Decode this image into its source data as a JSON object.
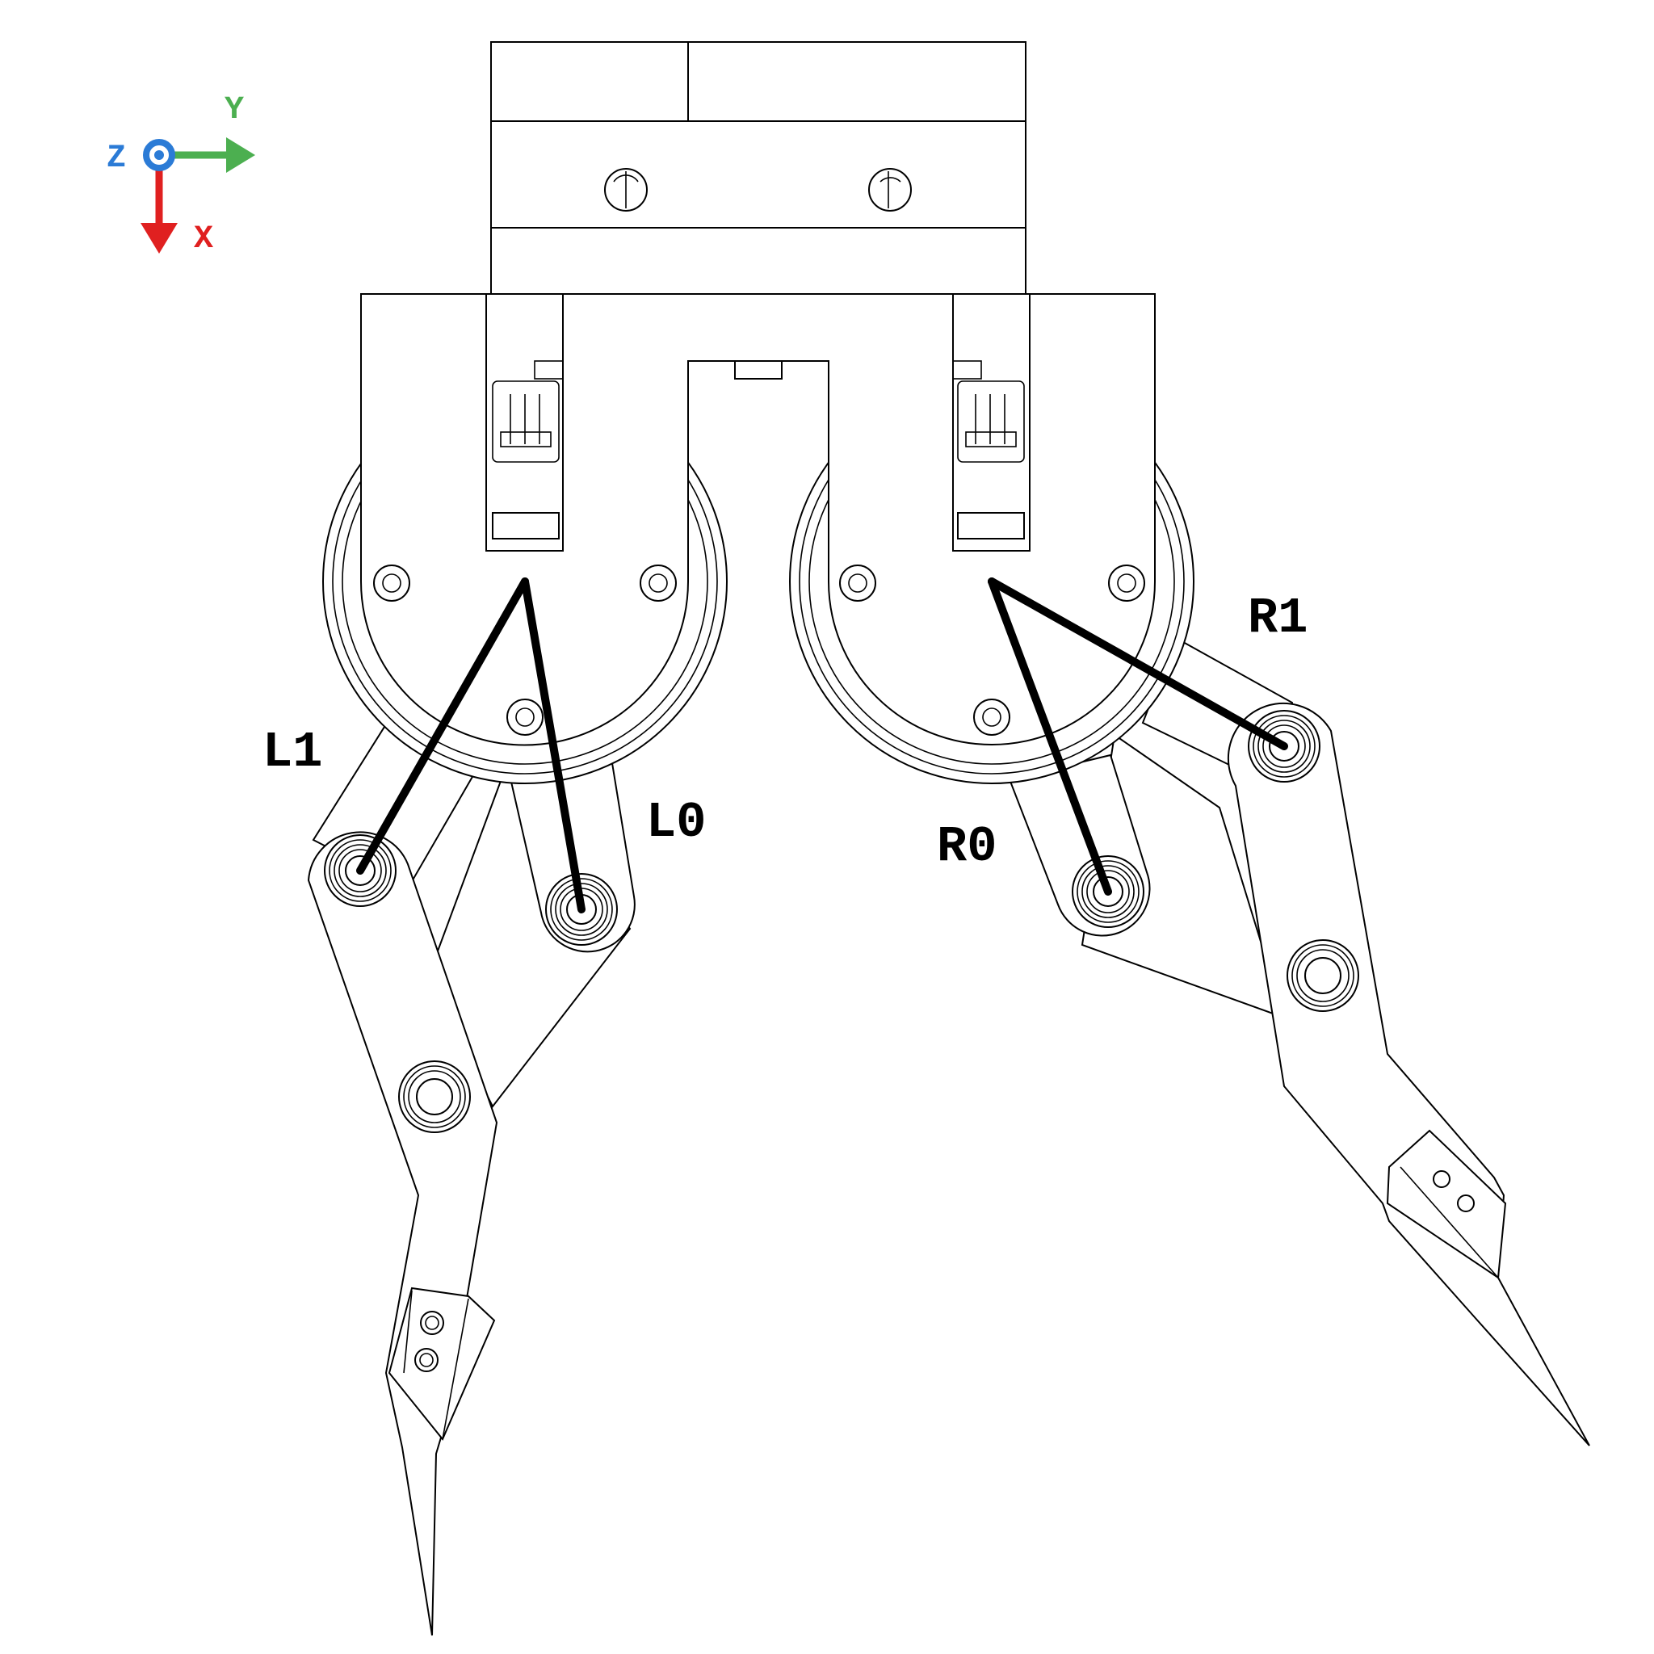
{
  "axes": {
    "z_label": "Z",
    "y_label": "Y",
    "x_label": "X",
    "colors": {
      "z": "#2b7bd6",
      "y": "#4caf50",
      "x": "#e02020"
    }
  },
  "links": {
    "l0": "L0",
    "l1": "L1",
    "r0": "R0",
    "r1": "R1"
  }
}
